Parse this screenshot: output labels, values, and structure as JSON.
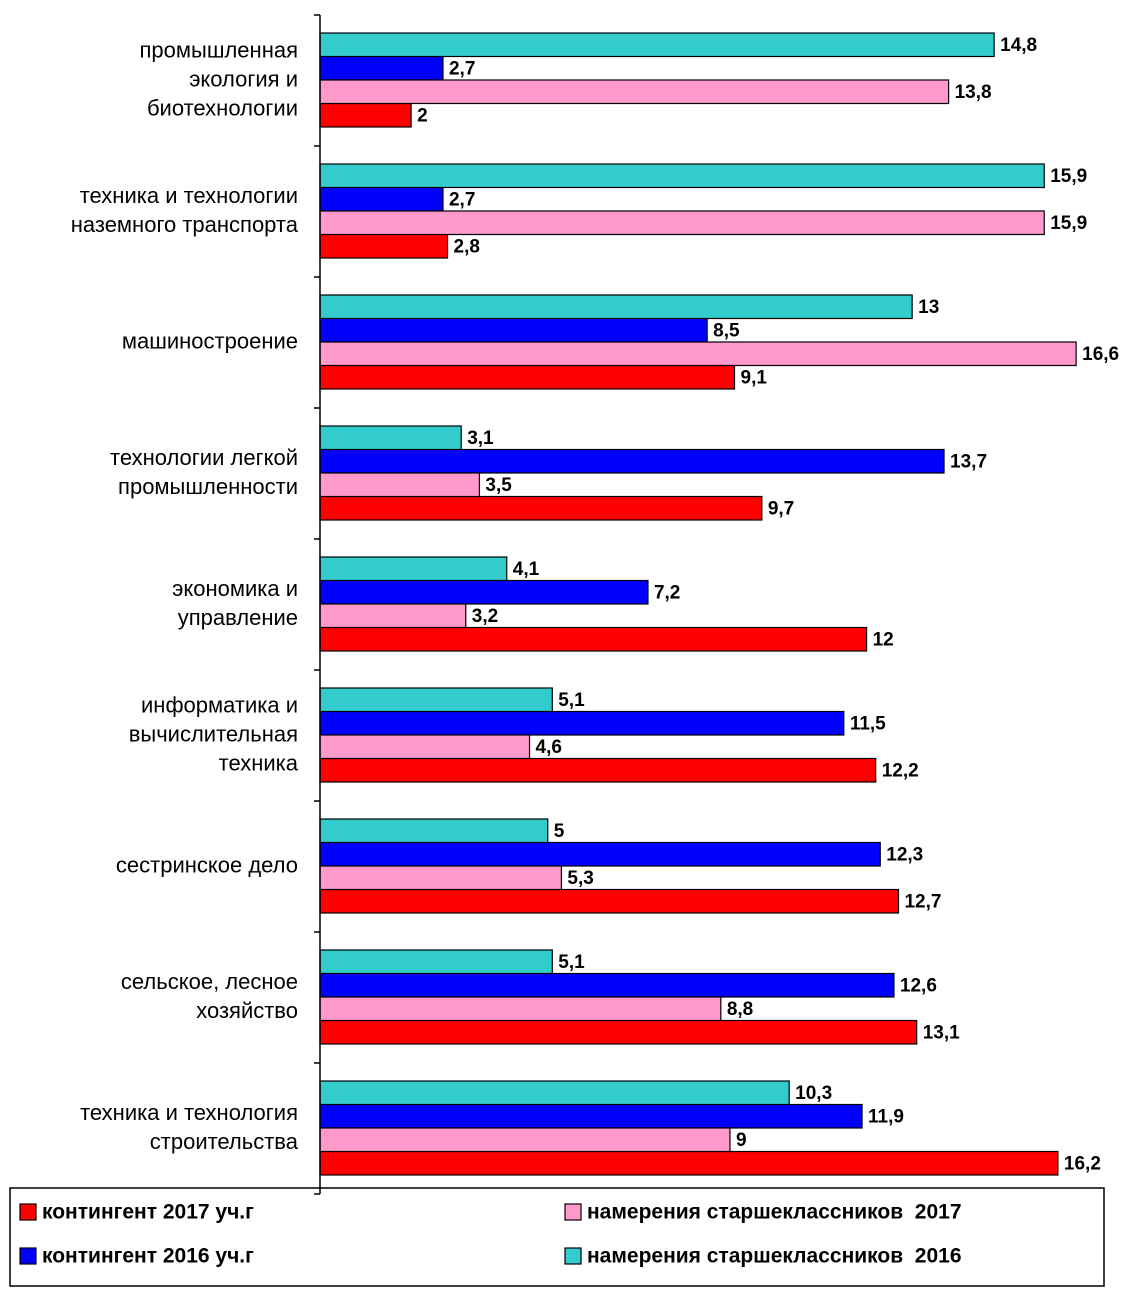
{
  "chart_data": {
    "type": "barh",
    "categories": [
      "промышленная\nэкология и\nбиотехнологии",
      "техника и технологии\nназемного транспорта",
      "машиностроение",
      "технологии легкой\nпромышленности",
      "экономика и\nуправление",
      "информатика и\nвычислительная\nтехника",
      "сестринское дело",
      "сельское, лесное\nхозяйство",
      "техника и технология\nстроительства"
    ],
    "series": [
      {
        "name": "контингент 2017 уч.г",
        "color": "#ff0000",
        "values": [
          2,
          2.8,
          9.1,
          9.7,
          12,
          12.2,
          12.7,
          13.1,
          16.2
        ],
        "value_labels": [
          "2",
          "2,8",
          "9,1",
          "9,7",
          "12",
          "12,2",
          "12,7",
          "13,1",
          "16,2"
        ]
      },
      {
        "name": "контингент 2016 уч.г",
        "color": "#0000ff",
        "values": [
          2.7,
          2.7,
          8.5,
          13.7,
          7.2,
          11.5,
          12.3,
          12.6,
          11.9
        ],
        "value_labels": [
          "2,7",
          "2,7",
          "8,5",
          "13,7",
          "7,2",
          "11,5",
          "12,3",
          "12,6",
          "11,9"
        ]
      },
      {
        "name": "намерения старшеклассников  2017",
        "color": "#ff99cc",
        "values": [
          13.8,
          15.9,
          16.6,
          3.5,
          3.2,
          4.6,
          5.3,
          8.8,
          9
        ],
        "value_labels": [
          "13,8",
          "15,9",
          "16,6",
          "3,5",
          "3,2",
          "4,6",
          "5,3",
          "8,8",
          "9"
        ]
      },
      {
        "name": "намерения старшеклассников  2016",
        "color": "#33cccc",
        "values": [
          14.8,
          15.9,
          13,
          3.1,
          4.1,
          5.1,
          5,
          5.1,
          10.3
        ],
        "value_labels": [
          "14,8",
          "15,9",
          "13",
          "3,1",
          "4,1",
          "5,1",
          "5",
          "5,1",
          "10,3"
        ]
      }
    ]
  }
}
